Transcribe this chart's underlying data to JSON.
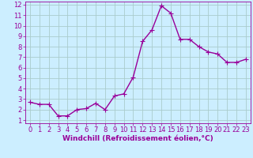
{
  "x": [
    0,
    1,
    2,
    3,
    4,
    5,
    6,
    7,
    8,
    9,
    10,
    11,
    12,
    13,
    14,
    15,
    16,
    17,
    18,
    19,
    20,
    21,
    22,
    23
  ],
  "y": [
    2.7,
    2.5,
    2.5,
    1.4,
    1.4,
    2.0,
    2.1,
    2.6,
    2.0,
    3.3,
    3.5,
    5.1,
    8.5,
    9.6,
    11.9,
    11.2,
    8.7,
    8.7,
    8.0,
    7.5,
    7.3,
    6.5,
    6.5,
    6.8
  ],
  "line_color": "#990099",
  "marker": "+",
  "marker_size": 4,
  "bg_color": "#cceeff",
  "grid_color": "#aacccc",
  "xlabel": "Windchill (Refroidissement éolien,°C)",
  "xlabel_color": "#990099",
  "tick_color": "#990099",
  "xlim_min": -0.5,
  "xlim_max": 23.5,
  "ylim_min": 0.7,
  "ylim_max": 12.3,
  "yticks": [
    1,
    2,
    3,
    4,
    5,
    6,
    7,
    8,
    9,
    10,
    11,
    12
  ],
  "xticks": [
    0,
    1,
    2,
    3,
    4,
    5,
    6,
    7,
    8,
    9,
    10,
    11,
    12,
    13,
    14,
    15,
    16,
    17,
    18,
    19,
    20,
    21,
    22,
    23
  ],
  "linewidth": 1.0,
  "marker_linewidth": 0.8,
  "tick_fontsize": 6.0,
  "xlabel_fontsize": 6.5
}
